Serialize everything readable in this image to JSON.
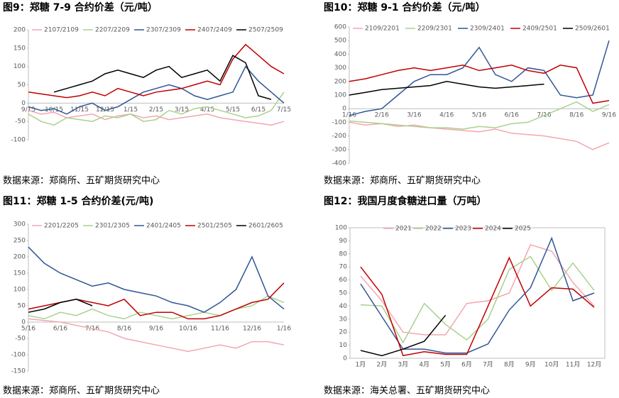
{
  "chart_data": [
    {
      "type": "line",
      "title": "图9：郑糖 7-9 合约价差（元/吨）",
      "source": "数据来源：郑商所、五矿期货研究中心",
      "categories": [
        "9/15",
        null,
        "10/15",
        null,
        "11/15",
        null,
        "12/15",
        null,
        "1/15",
        null,
        "2/15",
        null,
        "3/15",
        null,
        "4/15",
        null,
        "5/15",
        null,
        "6/15",
        null,
        "7/15"
      ],
      "ylim": [
        -100,
        200
      ],
      "yticks": [
        -100,
        -50,
        0,
        50,
        100,
        150,
        200
      ],
      "series": [
        {
          "name": "2107/2109",
          "color": "#f4a6b0",
          "values": [
            -20,
            -30,
            -25,
            -40,
            -35,
            -30,
            -45,
            -35,
            -30,
            -40,
            -35,
            -45,
            -40,
            -35,
            -30,
            -40,
            -45,
            -50,
            -55,
            -60,
            -50
          ]
        },
        {
          "name": "2207/2209",
          "color": "#a9d18e",
          "values": [
            -30,
            -50,
            -60,
            -40,
            -45,
            -50,
            -35,
            -40,
            -30,
            -50,
            -45,
            -20,
            -30,
            -15,
            -10,
            -20,
            -30,
            -40,
            -35,
            -20,
            30
          ]
        },
        {
          "name": "2307/2309",
          "color": "#2f5597",
          "values": [
            -10,
            -20,
            -15,
            -30,
            -10,
            0,
            -20,
            -10,
            10,
            30,
            40,
            50,
            40,
            20,
            10,
            20,
            30,
            100,
            60,
            30,
            0
          ]
        },
        {
          "name": "2407/2409",
          "color": "#c00000",
          "values": [
            30,
            25,
            20,
            15,
            20,
            30,
            20,
            40,
            30,
            20,
            30,
            35,
            40,
            50,
            60,
            50,
            120,
            160,
            130,
            100,
            80
          ]
        },
        {
          "name": "2507/2509",
          "color": "#000000",
          "values": [
            null,
            null,
            30,
            40,
            50,
            60,
            80,
            90,
            80,
            70,
            90,
            100,
            70,
            80,
            90,
            60,
            130,
            110,
            20,
            10,
            null
          ]
        }
      ]
    },
    {
      "type": "line",
      "title": "图10：郑糖 9-1 合约价差（元/吨）",
      "source": "数据来源：郑商所、五矿期货研究中心",
      "categories": [
        "1/16",
        null,
        "2/16",
        null,
        "3/16",
        null,
        "4/16",
        null,
        "5/16",
        null,
        "6/16",
        null,
        "7/16",
        null,
        "8/16",
        null,
        "9/16"
      ],
      "ylim": [
        -400,
        600
      ],
      "yticks": [
        -400,
        -300,
        -200,
        -100,
        0,
        100,
        200,
        300,
        400,
        500,
        600
      ],
      "series": [
        {
          "name": "2109/2201",
          "color": "#f4a6b0",
          "values": [
            -100,
            -120,
            -110,
            -130,
            -120,
            -140,
            -150,
            -160,
            -170,
            -150,
            -180,
            -190,
            -200,
            -220,
            -240,
            -300,
            -250
          ]
        },
        {
          "name": "2209/2301",
          "color": "#a9d18e",
          "values": [
            -90,
            -100,
            -110,
            -120,
            -130,
            -140,
            -140,
            -150,
            -130,
            -140,
            -110,
            -100,
            -50,
            0,
            50,
            -20,
            30
          ]
        },
        {
          "name": "2309/2401",
          "color": "#2f5597",
          "values": [
            -50,
            -20,
            0,
            100,
            200,
            250,
            250,
            300,
            450,
            250,
            200,
            300,
            280,
            100,
            80,
            100,
            500
          ]
        },
        {
          "name": "2409/2501",
          "color": "#c00000",
          "values": [
            200,
            220,
            250,
            280,
            300,
            280,
            300,
            320,
            280,
            300,
            320,
            280,
            260,
            320,
            300,
            40,
            60
          ]
        },
        {
          "name": "2509/2601",
          "color": "#000000",
          "values": [
            100,
            120,
            140,
            150,
            160,
            170,
            200,
            180,
            160,
            150,
            160,
            170,
            180,
            null,
            null,
            null,
            null
          ]
        }
      ]
    },
    {
      "type": "line",
      "title": "图11：郑糖 1-5 合约价差(元/吨)",
      "source": "数据来源：郑商所、五矿期货研究中心",
      "categories": [
        "5/16",
        null,
        "6/16",
        null,
        "7/16",
        null,
        "8/16",
        null,
        "9/16",
        null,
        "10/16",
        null,
        "11/16",
        null,
        "12/16",
        null,
        "1/16"
      ],
      "ylim": [
        -150,
        300
      ],
      "yticks": [
        -150,
        -100,
        -50,
        0,
        50,
        100,
        150,
        200,
        250,
        300
      ],
      "series": [
        {
          "name": "2201/2205",
          "color": "#f4a6b0",
          "values": [
            10,
            5,
            0,
            -10,
            -20,
            -30,
            -50,
            -60,
            -70,
            -80,
            -90,
            -80,
            -70,
            -80,
            -60,
            -60,
            -70
          ]
        },
        {
          "name": "2301/2305",
          "color": "#a9d18e",
          "values": [
            20,
            10,
            30,
            20,
            40,
            20,
            10,
            30,
            20,
            10,
            20,
            30,
            20,
            40,
            50,
            80,
            60
          ]
        },
        {
          "name": "2401/2405",
          "color": "#2f5597",
          "values": [
            230,
            180,
            150,
            130,
            110,
            120,
            100,
            90,
            80,
            60,
            50,
            30,
            60,
            100,
            200,
            80,
            40
          ]
        },
        {
          "name": "2501/2505",
          "color": "#c00000",
          "values": [
            40,
            50,
            60,
            70,
            60,
            50,
            70,
            20,
            30,
            30,
            10,
            10,
            20,
            40,
            60,
            70,
            120
          ]
        },
        {
          "name": "2601/2605",
          "color": "#000000",
          "values": [
            30,
            40,
            60,
            70,
            50,
            null,
            null,
            null,
            null,
            null,
            null,
            null,
            null,
            null,
            null,
            null,
            null
          ]
        }
      ]
    },
    {
      "type": "line",
      "title": "图12：我国月度食糖进口量（万吨）",
      "source": "数据来源：海关总署、五矿期货研究中心",
      "categories": [
        "1月",
        "2月",
        "3月",
        "4月",
        "5月",
        "6月",
        "7月",
        "8月",
        "9月",
        "10月",
        "11月",
        "12月"
      ],
      "ylim": [
        0,
        100
      ],
      "yticks": [
        0,
        10,
        20,
        30,
        40,
        50,
        60,
        70,
        80,
        90,
        100
      ],
      "series": [
        {
          "name": "2021",
          "color": "#f4a6b0",
          "values": [
            63,
            44,
            20,
            18,
            18,
            42,
            44,
            50,
            87,
            82,
            58,
            40
          ]
        },
        {
          "name": "2022",
          "color": "#a9d18e",
          "values": [
            41,
            40,
            12,
            42,
            26,
            14,
            30,
            68,
            78,
            52,
            73,
            52
          ]
        },
        {
          "name": "2023",
          "color": "#2f5597",
          "values": [
            57,
            32,
            7,
            7,
            4,
            4,
            11,
            37,
            54,
            92,
            44,
            50
          ]
        },
        {
          "name": "2024",
          "color": "#c00000",
          "values": [
            70,
            49,
            2,
            5,
            3,
            3,
            40,
            77,
            40,
            54,
            53,
            39
          ]
        },
        {
          "name": "2025",
          "color": "#000000",
          "values": [
            6,
            2,
            7,
            13,
            33,
            null,
            null,
            null,
            null,
            null,
            null,
            null
          ]
        }
      ]
    }
  ]
}
